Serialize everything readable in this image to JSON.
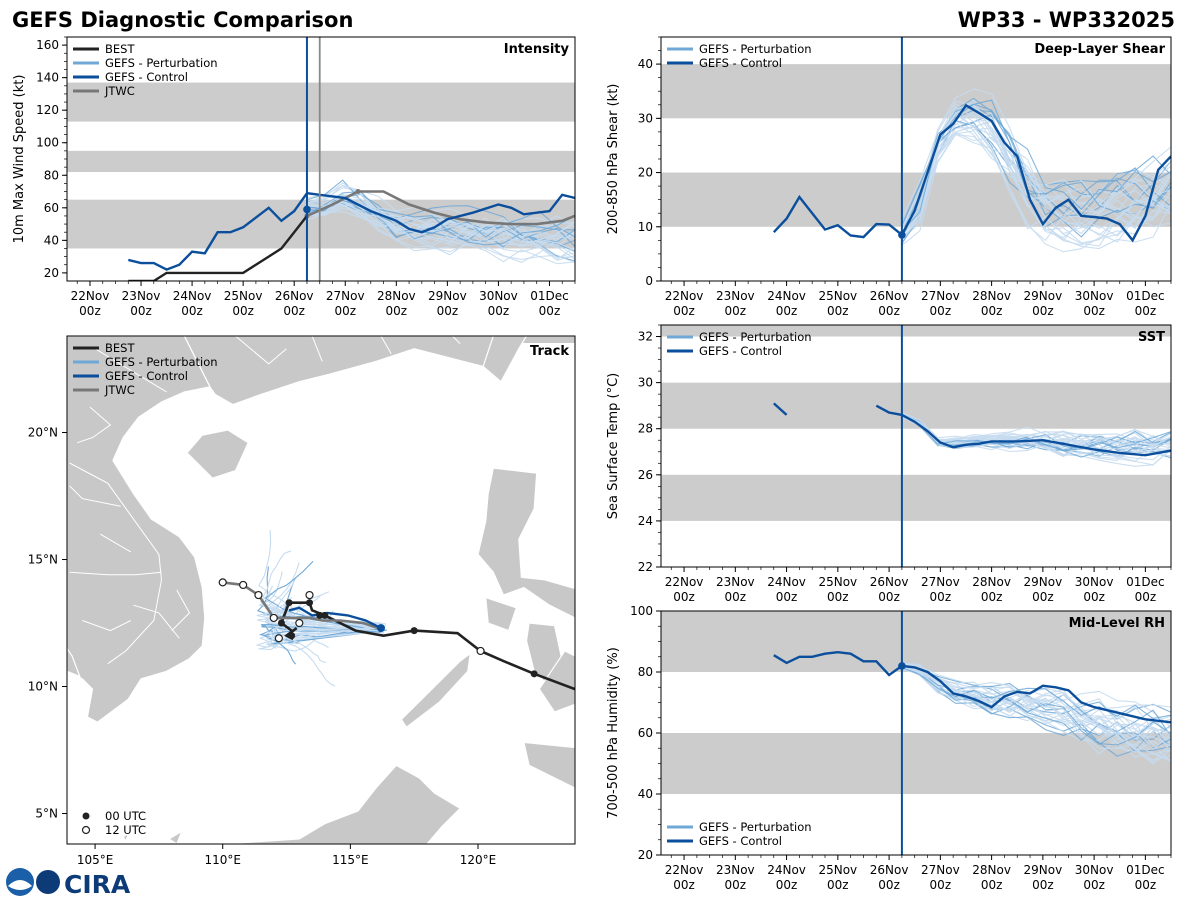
{
  "header": {
    "title": "GEFS Diagnostic Comparison",
    "storm_id": "WP33 - WP332025"
  },
  "colors": {
    "best": "#222222",
    "perturbation": "#6fa8d6",
    "perturbation_light": "#c6dcf0",
    "control": "#0b4f9c",
    "jtwc": "#777777",
    "band": "#cccccc",
    "land": "#c8c8c8",
    "init_line": "#0b4f9c"
  },
  "time_axis": {
    "labels_top": [
      "22Nov",
      "23Nov",
      "24Nov",
      "25Nov",
      "26Nov",
      "27Nov",
      "28Nov",
      "29Nov",
      "30Nov",
      "01Dec"
    ],
    "labels_bottom": [
      "00z",
      "00z",
      "00z",
      "00z",
      "00z",
      "00z",
      "00z",
      "00z",
      "00z",
      "00z"
    ],
    "range": [
      -0.45,
      9.5
    ],
    "init_time": 4.25
  },
  "chart_data": [
    {
      "id": "intensity",
      "type": "line",
      "title": "Intensity",
      "ylabel": "10m Max Wind Speed (kt)",
      "ylim": [
        15,
        165
      ],
      "yticks": [
        20,
        40,
        60,
        80,
        100,
        120,
        140,
        160
      ],
      "bands": [
        [
          35,
          65
        ],
        [
          82,
          95
        ],
        [
          113,
          137
        ]
      ],
      "extra_vline": 4.5,
      "legend": [
        "BEST",
        "GEFS - Perturbation",
        "GEFS - Control",
        "JTWC"
      ],
      "best": {
        "x": [
          0.75,
          1.25,
          1.5,
          2.0,
          2.5,
          3.0,
          3.25,
          3.5,
          3.75,
          4.0,
          4.25
        ],
        "y": [
          15,
          15,
          20,
          20,
          20,
          20,
          25,
          30,
          35,
          45,
          55
        ]
      },
      "control": {
        "x": [
          0.75,
          1.0,
          1.25,
          1.5,
          1.75,
          2.0,
          2.25,
          2.5,
          2.75,
          3.0,
          3.25,
          3.5,
          3.75,
          4.0,
          4.25,
          4.5,
          5.0,
          5.5,
          6.0,
          6.25,
          6.5,
          6.75,
          7.0,
          7.5,
          8.0,
          8.25,
          8.5,
          8.75,
          9.0,
          9.25,
          9.5
        ],
        "y": [
          28,
          26,
          26,
          22,
          25,
          33,
          32,
          45,
          45,
          48,
          54,
          60,
          52,
          58,
          69,
          68,
          66,
          58,
          52,
          47,
          45,
          48,
          53,
          57,
          62,
          60,
          56,
          57,
          58,
          68,
          66
        ]
      },
      "jtwc": {
        "x": [
          4.25,
          4.75,
          5.25,
          5.75,
          6.25,
          6.75,
          7.25,
          7.75,
          8.25,
          8.75,
          9.25,
          9.5
        ],
        "y": [
          55,
          62,
          70,
          70,
          62,
          57,
          53,
          51,
          50,
          50,
          52,
          55
        ]
      },
      "markers": [
        {
          "x": 4.25,
          "y": 59
        }
      ],
      "ensemble_center": [
        60,
        63,
        68,
        64,
        57,
        50,
        47,
        47,
        46,
        46,
        45,
        44,
        44,
        44,
        43,
        42
      ],
      "ensemble_spread": [
        8,
        10,
        12,
        12,
        13,
        14,
        15,
        15,
        16,
        17,
        17,
        18,
        18,
        18,
        19,
        19
      ]
    },
    {
      "id": "shear",
      "type": "line",
      "title": "Deep-Layer Shear",
      "ylabel": "200-850 hPa Shear (kt)",
      "ylim": [
        0,
        45
      ],
      "yticks": [
        0,
        10,
        20,
        30,
        40
      ],
      "bands": [
        [
          10,
          20
        ],
        [
          30,
          40
        ]
      ],
      "legend": [
        "GEFS - Perturbation",
        "GEFS - Control"
      ],
      "control": {
        "x": [
          1.75,
          2.0,
          2.25,
          2.5,
          2.75,
          3.0,
          3.25,
          3.5,
          3.75,
          4.0,
          4.25,
          4.5,
          5.0,
          5.25,
          5.5,
          5.75,
          6.0,
          6.25,
          6.5,
          6.75,
          7.0,
          7.25,
          7.5,
          7.75,
          8.0,
          8.25,
          8.5,
          8.75,
          9.0,
          9.25,
          9.5
        ],
        "y": [
          9,
          11.5,
          15.5,
          12.5,
          9.5,
          10.3,
          8.4,
          8.1,
          10.5,
          10.4,
          8.5,
          13,
          27,
          29,
          32.4,
          31,
          29.5,
          25.5,
          23,
          15,
          10.5,
          13.5,
          15,
          12,
          11.8,
          11.5,
          10.5,
          7.5,
          12,
          20.5,
          23
        ]
      },
      "markers": [
        {
          "x": 4.25,
          "y": 8.5
        }
      ],
      "ensemble_center": [
        9,
        14,
        25,
        30,
        30,
        28,
        22,
        17,
        14,
        13,
        13,
        13,
        14,
        15,
        16,
        17
      ],
      "ensemble_spread": [
        3,
        5,
        5,
        5,
        6,
        7,
        7,
        8,
        8,
        8,
        8,
        8,
        8,
        8,
        8,
        8
      ]
    },
    {
      "id": "sst",
      "type": "line",
      "title": "SST",
      "ylabel": "Sea Surface Temp (°C)",
      "ylim": [
        22,
        32.5
      ],
      "yticks": [
        22,
        24,
        26,
        28,
        30,
        32
      ],
      "bands": [
        [
          24,
          26
        ],
        [
          28,
          30
        ],
        [
          32,
          32.5
        ]
      ],
      "legend": [
        "GEFS - Perturbation",
        "GEFS - Control"
      ],
      "control_segments": [
        {
          "x": [
            1.75,
            2.0
          ],
          "y": [
            29.1,
            28.6
          ]
        },
        {
          "x": [
            3.75,
            4.0,
            4.25,
            4.5,
            4.75,
            5.0,
            5.25,
            5.5,
            5.75,
            6.0,
            6.5,
            7.0,
            7.5,
            8.0,
            8.5,
            9.0,
            9.5
          ],
          "y": [
            29.0,
            28.7,
            28.6,
            28.3,
            27.9,
            27.4,
            27.2,
            27.3,
            27.35,
            27.45,
            27.45,
            27.5,
            27.3,
            27.1,
            26.95,
            26.85,
            27.05
          ]
        }
      ],
      "markers": [],
      "ensemble_center": [
        28.6,
        28.2,
        27.4,
        27.4,
        27.5,
        27.5,
        27.5,
        27.5,
        27.5,
        27.4,
        27.4,
        27.4,
        27.3,
        27.3,
        27.3,
        27.3
      ],
      "ensemble_spread": [
        0.1,
        0.2,
        0.2,
        0.3,
        0.3,
        0.4,
        0.5,
        0.6,
        0.7,
        0.8,
        0.8,
        0.9,
        0.9,
        1.0,
        1.0,
        1.0
      ]
    },
    {
      "id": "rh",
      "type": "line",
      "title": "Mid-Level RH",
      "ylabel": "700-500 hPa Humidity (%)",
      "ylim": [
        20,
        100
      ],
      "yticks": [
        20,
        40,
        60,
        80,
        100
      ],
      "bands": [
        [
          40,
          60
        ],
        [
          80,
          100
        ]
      ],
      "legend": [
        "GEFS - Perturbation",
        "GEFS - Control"
      ],
      "control": {
        "x": [
          1.75,
          2.0,
          2.25,
          2.5,
          2.75,
          3.0,
          3.25,
          3.5,
          3.75,
          4.0,
          4.25,
          4.5,
          4.75,
          5.0,
          5.25,
          5.5,
          5.75,
          6.0,
          6.25,
          6.5,
          6.75,
          7.0,
          7.25,
          7.5,
          7.75,
          8.0,
          8.5,
          9.0,
          9.5
        ],
        "y": [
          85.5,
          83,
          85,
          85,
          86,
          86.5,
          86,
          83.5,
          83.5,
          79,
          82,
          81.5,
          80,
          77,
          73,
          72,
          70.5,
          68.5,
          72,
          73.5,
          73,
          75.5,
          75,
          74,
          70,
          68.5,
          66.5,
          64.5,
          63.5
        ]
      },
      "markers": [
        {
          "x": 4.25,
          "y": 82
        }
      ],
      "ensemble_center": [
        82,
        80,
        76,
        73,
        72,
        71,
        71,
        70,
        69,
        68,
        66,
        64,
        62,
        61,
        60,
        59
      ],
      "ensemble_spread": [
        1,
        3,
        4,
        5,
        6,
        7,
        8,
        9,
        10,
        11,
        11,
        12,
        12,
        12,
        12,
        12
      ]
    },
    {
      "id": "track",
      "type": "scatter",
      "title": "Track",
      "xlim": [
        103.9,
        123.8
      ],
      "ylim": [
        3.8,
        23.8
      ],
      "xticks": [
        105,
        110,
        115,
        120
      ],
      "xtick_labels": [
        "105°E",
        "110°E",
        "115°E",
        "120°E"
      ],
      "yticks": [
        5,
        10,
        15,
        20
      ],
      "ytick_labels": [
        "5°N",
        "10°N",
        "15°N",
        "20°N"
      ],
      "legend": [
        "BEST",
        "GEFS - Perturbation",
        "GEFS - Control",
        "JTWC"
      ],
      "marker_legend": [
        "00 UTC",
        "12 UTC"
      ],
      "best": {
        "lon": [
          123.8,
          122.2,
          121.0,
          120.1,
          119.2,
          117.5,
          116.3,
          115.2,
          114.0,
          113.5,
          113.4,
          112.6,
          112.3,
          112.7,
          112.7,
          112.5,
          112.9
        ],
        "lat": [
          9.9,
          10.5,
          11.0,
          11.4,
          12.1,
          12.2,
          12.0,
          12.2,
          12.8,
          13.0,
          13.3,
          13.3,
          12.5,
          12.2,
          11.9,
          12.0,
          12.3
        ]
      },
      "best_markers": [
        {
          "lon": 122.2,
          "lat": 10.5,
          "utc": 0
        },
        {
          "lon": 120.1,
          "lat": 11.4,
          "utc": 12
        },
        {
          "lon": 117.5,
          "lat": 12.2,
          "utc": 0
        },
        {
          "lon": 114.0,
          "lat": 12.8,
          "utc": 0
        },
        {
          "lon": 113.4,
          "lat": 13.3,
          "utc": 0
        },
        {
          "lon": 112.6,
          "lat": 13.3,
          "utc": 0
        },
        {
          "lon": 112.3,
          "lat": 12.5,
          "utc": 0
        },
        {
          "lon": 112.7,
          "lat": 12.0,
          "utc": 0
        },
        {
          "lon": 113.8,
          "lat": 12.8,
          "utc": 0
        }
      ],
      "jtwc": {
        "lon": [
          116.1,
          115.5,
          114.6,
          113.9,
          113.4,
          113.0,
          112.0,
          111.4,
          110.8,
          110.0
        ],
        "lat": [
          12.3,
          12.5,
          12.6,
          12.6,
          12.7,
          12.7,
          12.7,
          13.6,
          14.0,
          14.1
        ]
      },
      "jtwc_markers": [
        {
          "lon": 110.0,
          "lat": 14.1
        },
        {
          "lon": 110.8,
          "lat": 14.0
        },
        {
          "lon": 111.4,
          "lat": 13.6
        },
        {
          "lon": 112.0,
          "lat": 12.7
        },
        {
          "lon": 113.4,
          "lat": 13.6
        },
        {
          "lon": 113.0,
          "lat": 12.5
        },
        {
          "lon": 112.2,
          "lat": 11.9
        }
      ],
      "control": {
        "lon": [
          116.2,
          115.6,
          114.9,
          114.1,
          113.5,
          113.0,
          112.6
        ],
        "lat": [
          12.3,
          12.6,
          12.8,
          12.9,
          12.8,
          13.1,
          13.0
        ]
      },
      "control_marker": {
        "lon": 116.2,
        "lat": 12.3
      }
    }
  ],
  "footer": {
    "logo_text": "CIRA"
  }
}
